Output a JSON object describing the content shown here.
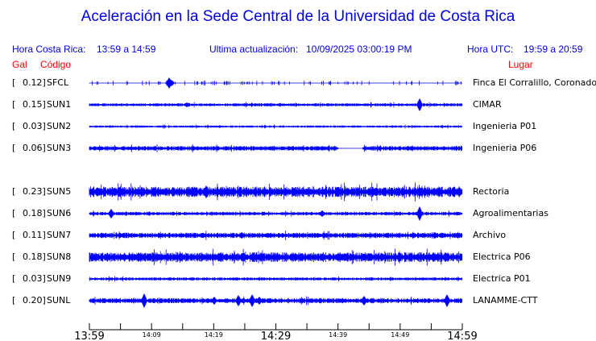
{
  "title": "Aceleración en la Sede Central de la Universidad de Costa Rica",
  "header": {
    "local_label": "Hora Costa Rica:",
    "local_range": "13:59 a 14:59",
    "update_label": "Ultima actualización:",
    "update_value": "10/09/2025 03:00:19 PM",
    "utc_label": "Hora UTC:",
    "utc_range": "19:59 a 20:59"
  },
  "columns": {
    "gal": "Gal",
    "code": "Código",
    "place": "Lugar"
  },
  "stations": [
    {
      "gal": "0.12",
      "code": "SFCL",
      "place": "Finca El Corralillo, Coronado"
    },
    {
      "gal": "0.15",
      "code": "SUN1",
      "place": "CIMAR"
    },
    {
      "gal": "0.03",
      "code": "SUN2",
      "place": "Ingenieria P01"
    },
    {
      "gal": "0.06",
      "code": "SUN3",
      "place": "Ingenieria P06"
    },
    {
      "gal": "0.23",
      "code": "SUN5",
      "place": "Rectoria"
    },
    {
      "gal": "0.18",
      "code": "SUN6",
      "place": "Agroalimentarias"
    },
    {
      "gal": "0.11",
      "code": "SUN7",
      "place": "Archivo"
    },
    {
      "gal": "0.18",
      "code": "SUN8",
      "place": "Electrica P06"
    },
    {
      "gal": "0.03",
      "code": "SUN9",
      "place": "Electrica P01"
    },
    {
      "gal": "0.20",
      "code": "SUNL",
      "place": "LANAMME-CTT"
    }
  ],
  "axis": {
    "start": "13:59",
    "end": "14:59",
    "minor_tick_minutes": 5,
    "labels": [
      "13:59",
      "14:09",
      "14:19",
      "14:29",
      "14:39",
      "14:49",
      "14:59"
    ]
  },
  "colors": {
    "trace": "#0000ff",
    "header": "#0000ee",
    "column_headers": "#ff0000"
  }
}
